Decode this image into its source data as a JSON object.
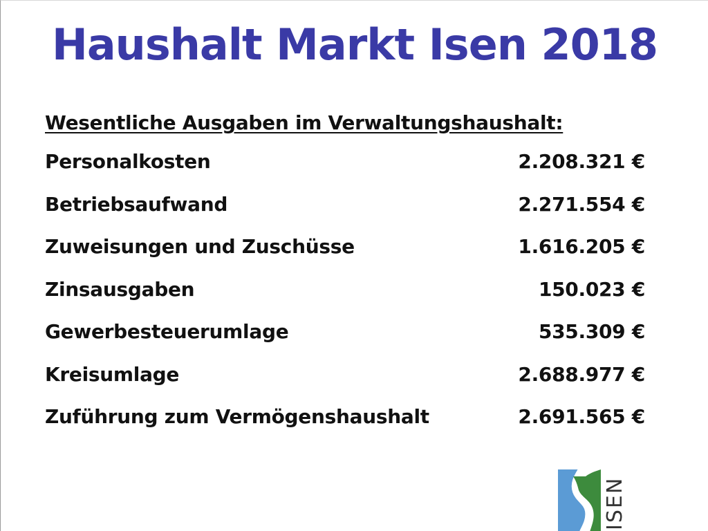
{
  "slide": {
    "title": "Haushalt Markt Isen 2018",
    "subtitle": "Wesentliche Ausgaben im Verwaltungshaushalt:",
    "items": [
      {
        "label": "Personalkosten",
        "amount": "2.208.321 €"
      },
      {
        "label": "Betriebsaufwand",
        "amount": "2.271.554 €"
      },
      {
        "label": "Zuweisungen und Zuschüsse",
        "amount": "1.616.205 €"
      },
      {
        "label": "Zinsausgaben",
        "amount": "150.023 €"
      },
      {
        "label": "Gewerbesteuerumlage",
        "amount": "535.309 €"
      },
      {
        "label": "Kreisumlage",
        "amount": "2.688.977 €"
      },
      {
        "label": "Zuführung zum Vermögenshaushalt",
        "amount": "2.691.565 €"
      }
    ]
  },
  "logo": {
    "text": "ISEN",
    "colors": {
      "blue": "#5b9bd5",
      "green": "#3d8b3d",
      "text": "#333333"
    }
  },
  "colors": {
    "title": "#3a3aa6",
    "text": "#111111"
  }
}
